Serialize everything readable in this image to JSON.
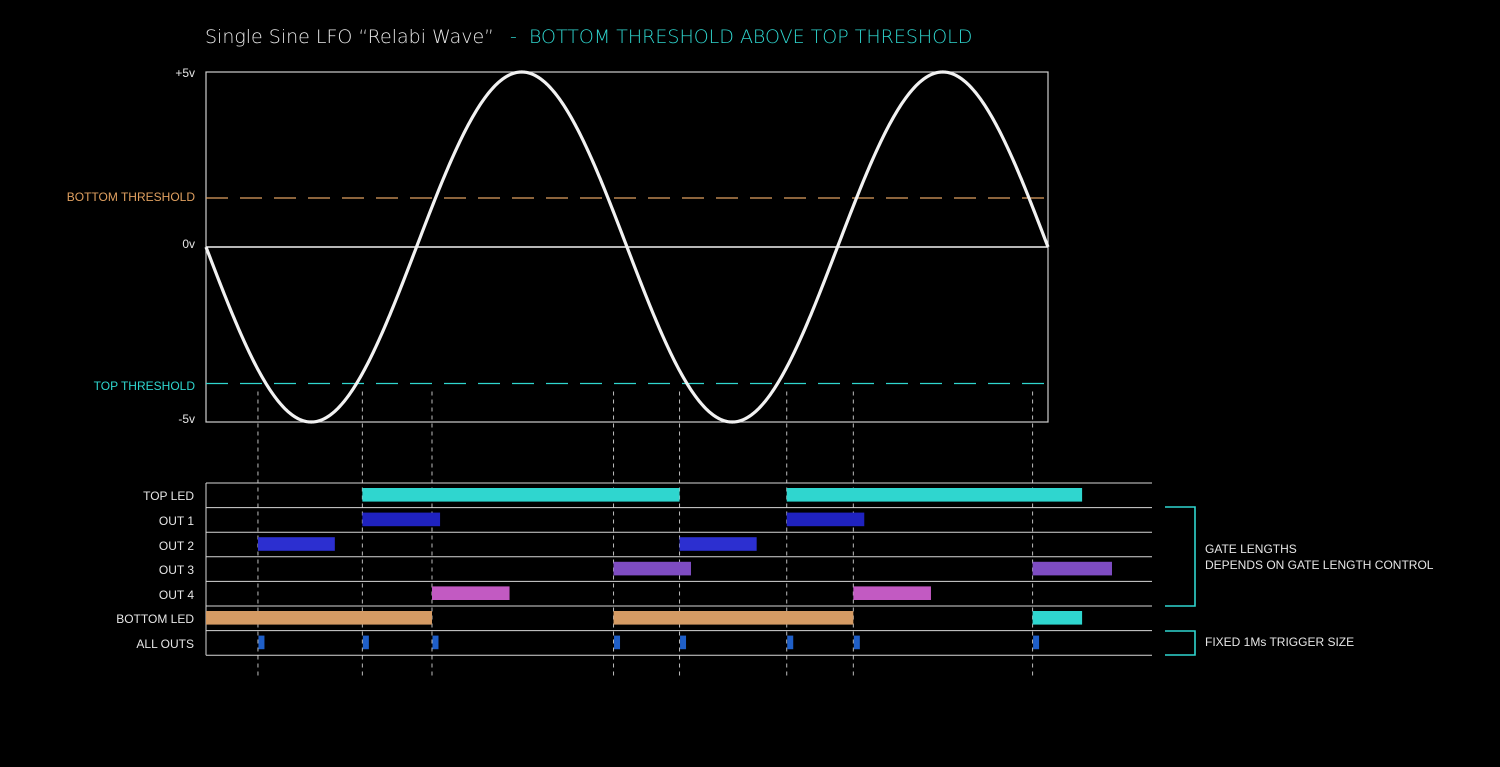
{
  "title": {
    "main": "Single Sine LFO “Relabi Wave”",
    "separator": "-",
    "subtitle": "BOTTOM THRESHOLD ABOVE TOP THRESHOLD"
  },
  "waveform": {
    "ylim": [
      -5,
      5
    ],
    "y_ticks": [
      "+5v",
      "0v",
      "-5v"
    ],
    "bottom_threshold": {
      "label": "BOTTOM THRESHOLD",
      "value": 1.4,
      "color": "#e0a060"
    },
    "top_threshold": {
      "label": "TOP THRESHOLD",
      "value": -3.9,
      "color": "#2fd6cf"
    },
    "cycles": 2,
    "start_phase": "down",
    "wave_color": "#f2f2f2"
  },
  "lanes": [
    {
      "label": "TOP LED"
    },
    {
      "label": "OUT 1"
    },
    {
      "label": "OUT 2"
    },
    {
      "label": "OUT 3"
    },
    {
      "label": "OUT 4"
    },
    {
      "label": "BOTTOM LED"
    },
    {
      "label": "ALL OUTS"
    }
  ],
  "gates": [
    {
      "lane": 0,
      "start": 0.1857,
      "end": 0.5624,
      "color": "#2fd6cf"
    },
    {
      "lane": 0,
      "start": 0.6897,
      "end": 1.0405,
      "color": "#2fd6cf"
    },
    {
      "lane": 1,
      "start": 0.1857,
      "end": 0.278,
      "color": "#1f22bf"
    },
    {
      "lane": 1,
      "start": 0.6897,
      "end": 0.7818,
      "color": "#1f22bf"
    },
    {
      "lane": 2,
      "start": 0.0617,
      "end": 0.153,
      "color": "#2c2fd0"
    },
    {
      "lane": 2,
      "start": 0.5624,
      "end": 0.654,
      "color": "#2c2fd0"
    },
    {
      "lane": 3,
      "start": 0.484,
      "end": 0.576,
      "color": "#7e4cc2"
    },
    {
      "lane": 3,
      "start": 0.9817,
      "end": 1.076,
      "color": "#7e4cc2"
    },
    {
      "lane": 4,
      "start": 0.2684,
      "end": 0.3605,
      "color": "#c25ac2"
    },
    {
      "lane": 4,
      "start": 0.7688,
      "end": 0.861,
      "color": "#c25ac2"
    },
    {
      "lane": 5,
      "start": 0.0,
      "end": 0.2684,
      "color": "#d59b64"
    },
    {
      "lane": 5,
      "start": 0.484,
      "end": 0.7688,
      "color": "#d59b64"
    },
    {
      "lane": 5,
      "start": 0.9817,
      "end": 1.0405,
      "color": "#2fd6cf"
    }
  ],
  "triggers": {
    "times": [
      0.0617,
      0.1857,
      0.2684,
      0.484,
      0.5624,
      0.6897,
      0.7688,
      0.9817
    ],
    "color": "#1f5fc8"
  },
  "event_times": [
    0.0617,
    0.1857,
    0.2684,
    0.484,
    0.5624,
    0.6897,
    0.7688,
    0.9817
  ],
  "notes": {
    "gate_lengths": [
      "GATE LENGTHS",
      "DEPENDS ON GATE LENGTH CONTROL"
    ],
    "trigger_size": "FIXED 1Ms TRIGGER SIZE",
    "bracket_color": "#2fd6cf"
  }
}
